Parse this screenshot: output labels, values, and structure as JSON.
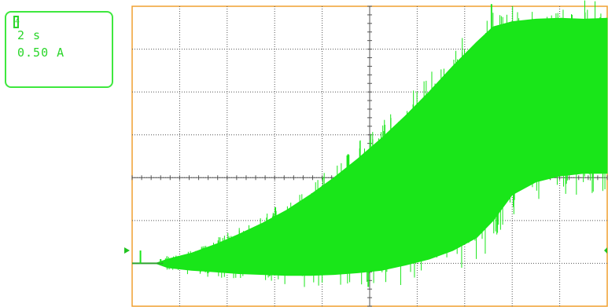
{
  "readout": {
    "channel_marker": "4",
    "timebase": "2 s",
    "scale": "0.50 A"
  },
  "colors": {
    "trace": "#19e619",
    "trace_text": "#2ad62a",
    "grid": "#555555",
    "frame": "#f0a030",
    "marker": "#21c321"
  },
  "chart_data": {
    "type": "line",
    "title": "",
    "xlabel": "",
    "ylabel": "",
    "grid": true,
    "x_divisions": 10,
    "y_divisions": 7,
    "xlim": [
      0,
      20
    ],
    "ylim": [
      -0.5,
      3.0
    ],
    "x_unit": "s",
    "y_unit": "A",
    "series": [
      {
        "style": "envelope",
        "x": [
          0.0,
          0.35,
          1.0,
          1.2,
          1.5,
          2.5,
          3.5,
          4.5,
          5.5,
          6.5,
          7.5,
          8.5,
          9.5,
          10.5,
          11.5,
          12.5,
          13.5,
          14.5,
          15.2,
          16.0,
          17.0,
          18.0,
          19.0,
          20.0
        ],
        "upper": [
          0.0,
          0.0,
          0.0,
          0.02,
          0.05,
          0.12,
          0.22,
          0.34,
          0.47,
          0.62,
          0.8,
          1.0,
          1.22,
          1.46,
          1.72,
          2.0,
          2.3,
          2.58,
          2.76,
          2.82,
          2.85,
          2.86,
          2.85,
          2.86
        ],
        "lower": [
          0.0,
          0.0,
          0.0,
          -0.02,
          -0.05,
          -0.08,
          -0.1,
          -0.12,
          -0.13,
          -0.14,
          -0.14,
          -0.13,
          -0.11,
          -0.08,
          -0.02,
          0.05,
          0.15,
          0.3,
          0.5,
          0.8,
          0.95,
          1.02,
          1.05,
          1.05
        ]
      }
    ],
    "markers": [
      {
        "x": 0.35,
        "y": 0.15,
        "label": ""
      },
      {
        "x": 1.2,
        "y": 0.05,
        "label": ""
      }
    ]
  }
}
